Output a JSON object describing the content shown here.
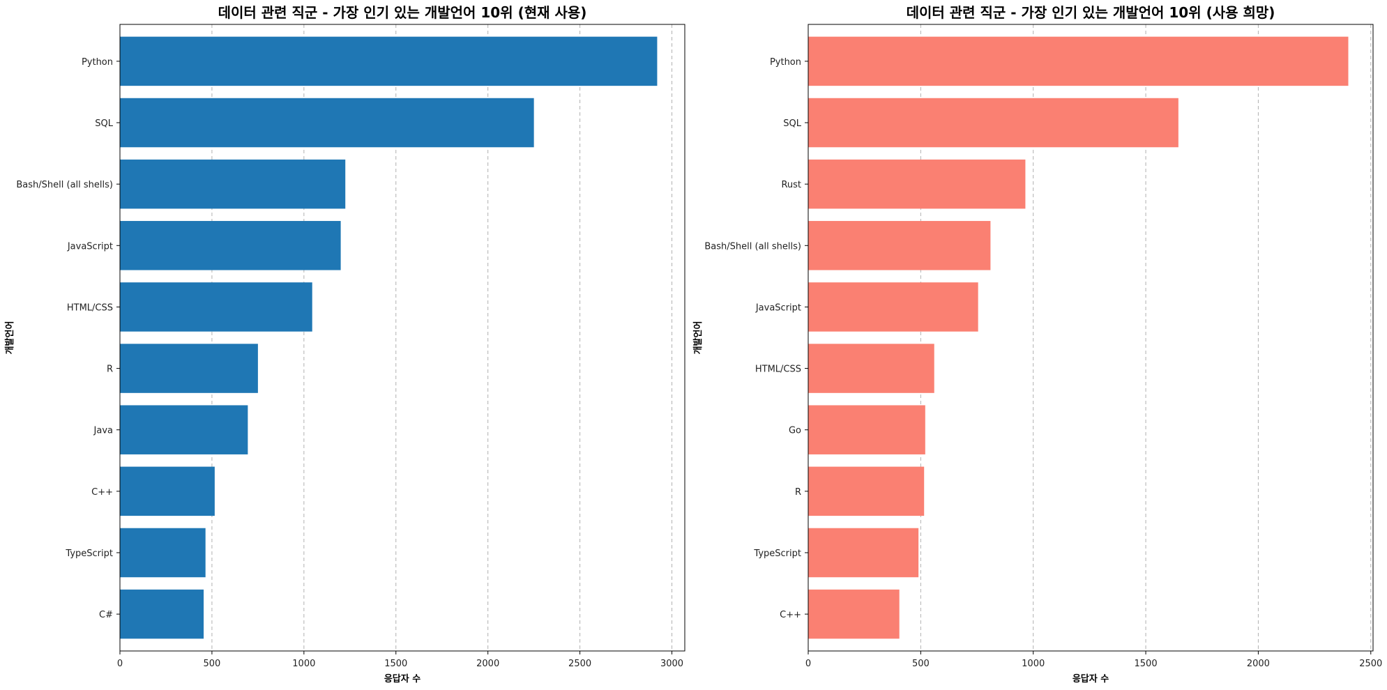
{
  "chart_data": [
    {
      "type": "bar",
      "orientation": "horizontal",
      "title": "데이터 관련 직군 - 가장 인기 있는 개발언어 10위 (현재 사용)",
      "xlabel": "응답자 수",
      "ylabel": "개발언어",
      "color": "#1f77b4",
      "xlim": [
        0,
        3070
      ],
      "xticks": [
        0,
        500,
        1000,
        1500,
        2000,
        2500,
        3000
      ],
      "grid": "x-dashed",
      "categories": [
        "Python",
        "SQL",
        "Bash/Shell (all shells)",
        "JavaScript",
        "HTML/CSS",
        "R",
        "Java",
        "C++",
        "TypeScript",
        "C#"
      ],
      "values": [
        2920,
        2250,
        1225,
        1200,
        1045,
        750,
        695,
        515,
        465,
        455
      ]
    },
    {
      "type": "bar",
      "orientation": "horizontal",
      "title": "데이터 관련 직군 - 가장 인기 있는 개발언어 10위 (사용 희망)",
      "xlabel": "응답자 수",
      "ylabel": "개발언어",
      "color": "#fa8072",
      "xlim": [
        0,
        2510
      ],
      "xticks": [
        0,
        500,
        1000,
        1500,
        2000,
        2500
      ],
      "grid": "x-dashed",
      "categories": [
        "Python",
        "SQL",
        "Rust",
        "Bash/Shell (all shells)",
        "JavaScript",
        "HTML/CSS",
        "Go",
        "R",
        "TypeScript",
        "C++"
      ],
      "values": [
        2400,
        1645,
        965,
        810,
        755,
        560,
        520,
        515,
        490,
        405
      ]
    }
  ]
}
